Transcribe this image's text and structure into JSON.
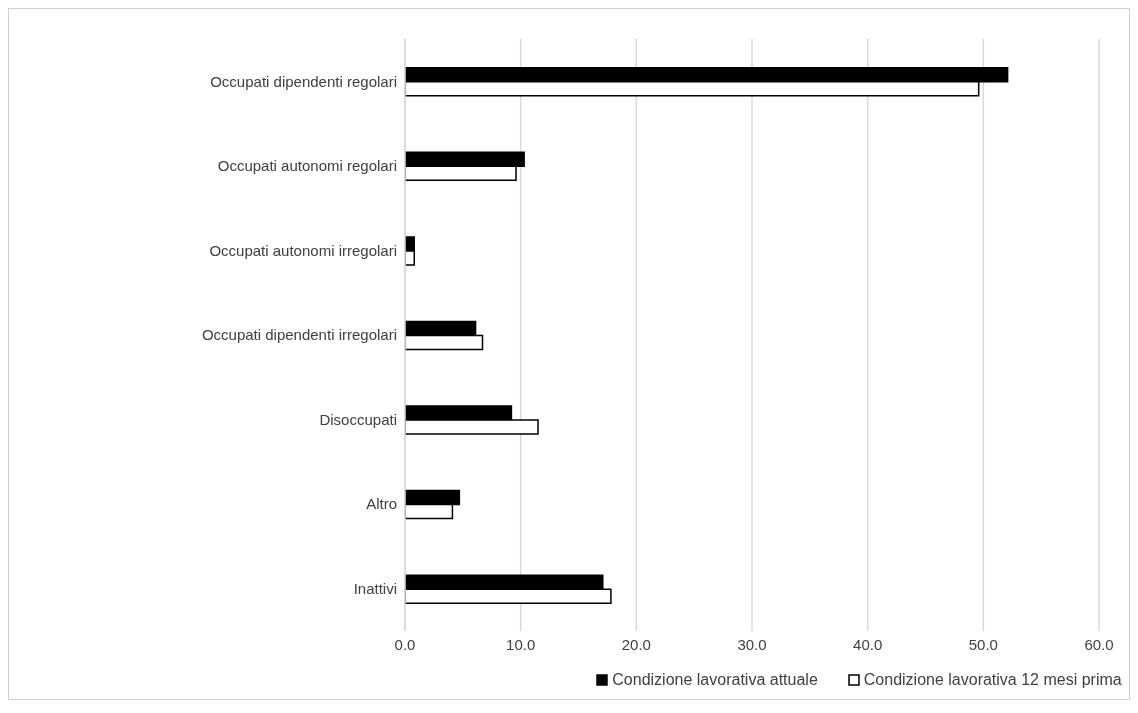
{
  "chart_data": {
    "type": "bar",
    "orientation": "horizontal",
    "categories": [
      "Occupati dipendenti regolari",
      "Occupati autonomi regolari",
      "Occupati autonomi irregolari",
      "Occupati dipendenti irregolari",
      "Disoccupati",
      "Altro",
      "Inattivi"
    ],
    "series": [
      {
        "name": "Condizione lavorativa attuale",
        "color": "#000000",
        "values": [
          52.1,
          10.3,
          0.8,
          6.1,
          9.2,
          4.7,
          17.1
        ]
      },
      {
        "name": "Condizione lavorativa 12 mesi prima",
        "color": "#ffffff",
        "values": [
          49.6,
          9.6,
          0.8,
          6.7,
          11.5,
          4.1,
          17.8
        ]
      }
    ],
    "xlim": [
      0,
      60
    ],
    "xticks": [
      {
        "value": 0,
        "label": "0.0"
      },
      {
        "value": 10,
        "label": "10.0"
      },
      {
        "value": 20,
        "label": "20.0"
      },
      {
        "value": 30,
        "label": "30.0"
      },
      {
        "value": 40,
        "label": "40.0"
      },
      {
        "value": 50,
        "label": "50.0"
      },
      {
        "value": 60,
        "label": "60.0"
      }
    ],
    "grid": "x",
    "legend": "bottom"
  }
}
